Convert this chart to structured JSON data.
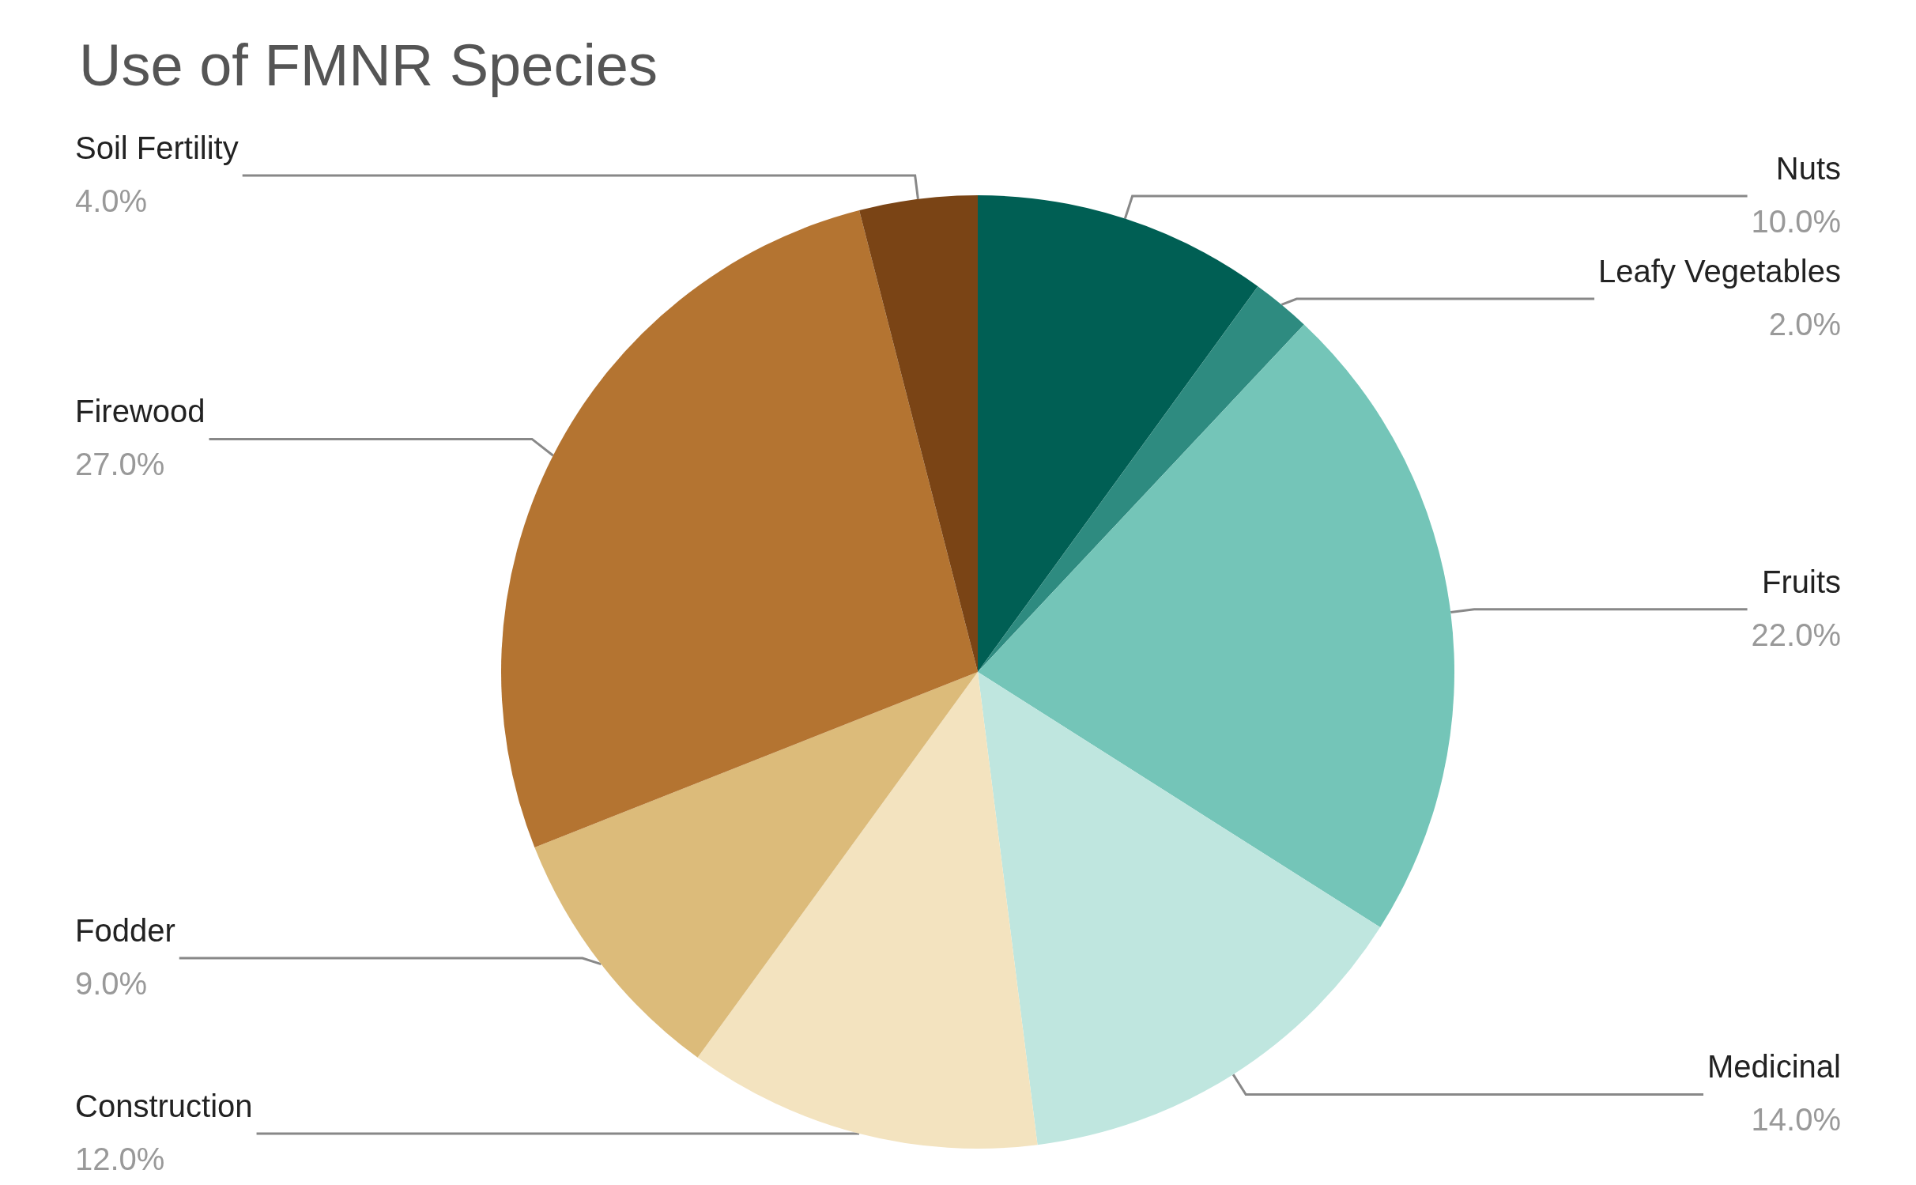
{
  "chart_data": {
    "type": "pie",
    "title": "Use of FMNR Species",
    "categories": [
      "Nuts",
      "Leafy Vegetables",
      "Fruits",
      "Medicinal",
      "Construction",
      "Fodder",
      "Firewood",
      "Soil Fertility"
    ],
    "values": [
      10,
      2,
      22,
      14,
      12,
      9,
      27,
      4
    ],
    "value_labels": [
      "10.0%",
      "2.0%",
      "22.0%",
      "14.0%",
      "12.0%",
      "9.0%",
      "27.0%",
      "4.0%"
    ],
    "colors": [
      "#005f54",
      "#2e8b80",
      "#74c5b8",
      "#bfe6df",
      "#f3e3bf",
      "#dcbb7a",
      "#b47431",
      "#7a4415"
    ]
  }
}
